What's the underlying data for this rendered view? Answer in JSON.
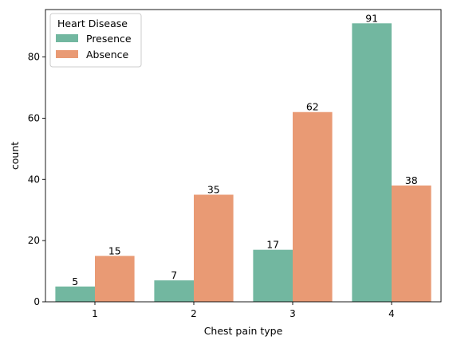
{
  "chart_data": {
    "type": "bar",
    "categories": [
      "1",
      "2",
      "3",
      "4"
    ],
    "xlabel": "Chest pain type",
    "ylabel": "count",
    "ylim": [
      0,
      95.5
    ],
    "yticks": [
      0,
      20,
      40,
      60,
      80
    ],
    "grid": false,
    "legend": {
      "title": "Heart Disease",
      "placement": "top-left"
    },
    "series": [
      {
        "name": "Presence",
        "color": "#72b7a0",
        "values": [
          5,
          7,
          17,
          91
        ]
      },
      {
        "name": "Absence",
        "color": "#e99a74",
        "values": [
          15,
          35,
          62,
          38
        ]
      }
    ]
  }
}
